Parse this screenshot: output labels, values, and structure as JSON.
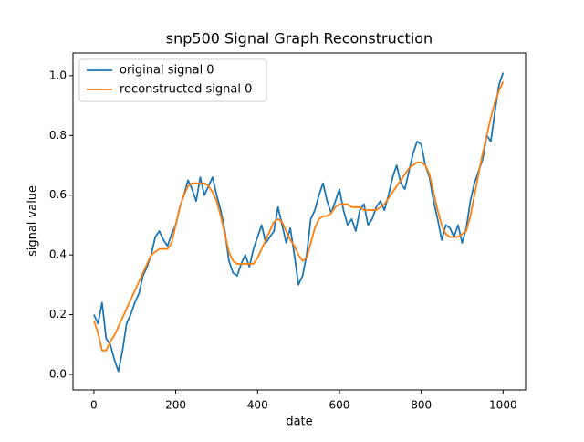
{
  "chart_data": {
    "type": "line",
    "title": "snp500 Signal Graph Reconstruction",
    "xlabel": "date",
    "ylabel": "signal value",
    "x": [
      0,
      10,
      20,
      30,
      40,
      50,
      60,
      70,
      80,
      90,
      100,
      110,
      120,
      130,
      140,
      150,
      160,
      170,
      180,
      190,
      200,
      210,
      220,
      230,
      240,
      250,
      260,
      270,
      280,
      290,
      300,
      310,
      320,
      330,
      340,
      350,
      360,
      370,
      380,
      390,
      400,
      410,
      420,
      430,
      440,
      450,
      460,
      470,
      480,
      490,
      500,
      510,
      520,
      530,
      540,
      550,
      560,
      570,
      580,
      590,
      600,
      610,
      620,
      630,
      640,
      650,
      660,
      670,
      680,
      690,
      700,
      710,
      720,
      730,
      740,
      750,
      760,
      770,
      780,
      790,
      800,
      810,
      820,
      830,
      840,
      850,
      860,
      870,
      880,
      890,
      900,
      910,
      920,
      930,
      940,
      950,
      960,
      970,
      980,
      990,
      1000
    ],
    "series": [
      {
        "name": "original signal 0",
        "color": "#1f77b4",
        "values": [
          0.2,
          0.17,
          0.24,
          0.12,
          0.1,
          0.05,
          0.01,
          0.08,
          0.17,
          0.2,
          0.24,
          0.27,
          0.33,
          0.36,
          0.4,
          0.46,
          0.48,
          0.45,
          0.43,
          0.47,
          0.5,
          0.56,
          0.6,
          0.65,
          0.62,
          0.58,
          0.66,
          0.6,
          0.63,
          0.66,
          0.6,
          0.55,
          0.48,
          0.38,
          0.34,
          0.33,
          0.37,
          0.4,
          0.36,
          0.42,
          0.46,
          0.5,
          0.44,
          0.46,
          0.48,
          0.56,
          0.5,
          0.44,
          0.49,
          0.4,
          0.3,
          0.33,
          0.4,
          0.52,
          0.55,
          0.6,
          0.64,
          0.58,
          0.54,
          0.58,
          0.62,
          0.55,
          0.5,
          0.52,
          0.48,
          0.55,
          0.57,
          0.5,
          0.52,
          0.56,
          0.58,
          0.55,
          0.6,
          0.66,
          0.7,
          0.64,
          0.62,
          0.68,
          0.74,
          0.78,
          0.77,
          0.7,
          0.66,
          0.58,
          0.52,
          0.45,
          0.5,
          0.49,
          0.46,
          0.5,
          0.44,
          0.49,
          0.58,
          0.64,
          0.68,
          0.72,
          0.8,
          0.78,
          0.88,
          0.97,
          1.01
        ]
      },
      {
        "name": "reconstructed signal 0",
        "color": "#ff7f0e",
        "values": [
          0.18,
          0.14,
          0.08,
          0.08,
          0.11,
          0.13,
          0.16,
          0.19,
          0.22,
          0.25,
          0.28,
          0.31,
          0.34,
          0.37,
          0.4,
          0.41,
          0.42,
          0.42,
          0.42,
          0.44,
          0.5,
          0.56,
          0.6,
          0.63,
          0.64,
          0.64,
          0.64,
          0.64,
          0.63,
          0.61,
          0.58,
          0.53,
          0.47,
          0.41,
          0.38,
          0.37,
          0.37,
          0.37,
          0.37,
          0.37,
          0.39,
          0.42,
          0.45,
          0.48,
          0.51,
          0.52,
          0.51,
          0.48,
          0.45,
          0.43,
          0.4,
          0.38,
          0.39,
          0.44,
          0.49,
          0.52,
          0.53,
          0.53,
          0.54,
          0.56,
          0.57,
          0.57,
          0.57,
          0.56,
          0.56,
          0.56,
          0.55,
          0.55,
          0.55,
          0.55,
          0.56,
          0.57,
          0.59,
          0.61,
          0.63,
          0.65,
          0.67,
          0.69,
          0.7,
          0.71,
          0.71,
          0.7,
          0.67,
          0.61,
          0.55,
          0.5,
          0.47,
          0.46,
          0.46,
          0.46,
          0.47,
          0.48,
          0.53,
          0.6,
          0.67,
          0.74,
          0.8,
          0.86,
          0.91,
          0.95,
          0.98
        ]
      }
    ],
    "xlim": [
      -51,
      1055
    ],
    "ylim": [
      -0.052,
      1.076
    ],
    "xticks": [
      0,
      200,
      400,
      600,
      800,
      1000
    ],
    "yticks": [
      {
        "value": 0,
        "label": "0.0"
      },
      {
        "value": 0.2,
        "label": "0.2"
      },
      {
        "value": 0.4,
        "label": "0.4"
      },
      {
        "value": 0.6,
        "label": "0.6"
      },
      {
        "value": 0.8,
        "label": "0.8"
      },
      {
        "value": 1,
        "label": "1.0"
      }
    ],
    "legend": "upper left"
  }
}
